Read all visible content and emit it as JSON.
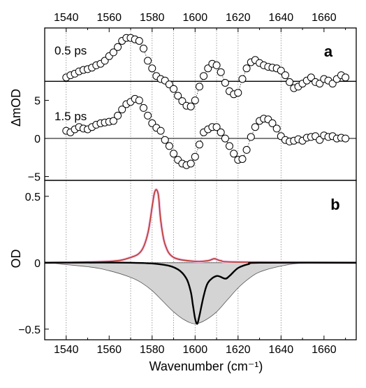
{
  "chart_data": [
    {
      "panel_label": "a",
      "type": "scatter",
      "ylabel": "ΔmOD",
      "xlim": [
        1530,
        1675
      ],
      "ylim": [
        -5.5,
        14.5
      ],
      "x_ticks": [
        1540,
        1560,
        1580,
        1600,
        1620,
        1640,
        1660
      ],
      "y_ticks": [
        -5,
        0,
        5
      ],
      "grid_x": [
        1540,
        1570,
        1580,
        1590,
        1600,
        1610,
        1620,
        1640
      ],
      "baseline_offsets": [
        7.5,
        0
      ],
      "series": [
        {
          "name": "0.5 ps",
          "offset": 7.5,
          "x": [
            1540,
            1542,
            1544,
            1546,
            1548,
            1550,
            1552,
            1554,
            1556,
            1558,
            1560,
            1562,
            1564,
            1566,
            1568,
            1570,
            1572,
            1574,
            1576,
            1578,
            1580,
            1582,
            1584,
            1586,
            1588,
            1590,
            1592,
            1594,
            1596,
            1598,
            1600,
            1602,
            1604,
            1606,
            1608,
            1610,
            1612,
            1614,
            1616,
            1618,
            1620,
            1622,
            1624,
            1626,
            1628,
            1630,
            1632,
            1634,
            1636,
            1638,
            1640,
            1642,
            1644,
            1646,
            1648,
            1650,
            1652,
            1654,
            1656,
            1658,
            1660,
            1662,
            1664,
            1666,
            1668,
            1670
          ],
          "y": [
            8.0,
            8.3,
            8.5,
            8.8,
            9.0,
            9.1,
            9.3,
            9.6,
            9.8,
            10.2,
            10.8,
            11.3,
            12.0,
            12.8,
            13.2,
            13.2,
            13.0,
            12.8,
            11.8,
            10.2,
            9.2,
            8.2,
            7.8,
            7.6,
            7.1,
            6.5,
            5.6,
            4.9,
            4.3,
            4.2,
            5.0,
            6.8,
            8.2,
            9.2,
            9.8,
            9.6,
            8.7,
            7.3,
            6.2,
            5.8,
            6.0,
            7.8,
            9.2,
            10.0,
            10.3,
            9.9,
            9.6,
            9.4,
            9.3,
            9.2,
            8.9,
            8.3,
            7.4,
            6.6,
            6.8,
            7.2,
            7.6,
            8.0,
            7.4,
            7.2,
            7.8,
            7.6,
            7.2,
            7.8,
            8.3,
            8.0
          ]
        },
        {
          "name": "1.5 ps",
          "offset": 0,
          "x": [
            1540,
            1542,
            1544,
            1546,
            1548,
            1550,
            1552,
            1554,
            1556,
            1558,
            1560,
            1562,
            1564,
            1566,
            1568,
            1570,
            1572,
            1574,
            1576,
            1578,
            1580,
            1582,
            1584,
            1586,
            1588,
            1590,
            1592,
            1594,
            1596,
            1598,
            1600,
            1602,
            1604,
            1606,
            1608,
            1610,
            1612,
            1614,
            1616,
            1618,
            1620,
            1622,
            1624,
            1626,
            1628,
            1630,
            1632,
            1634,
            1636,
            1638,
            1640,
            1642,
            1644,
            1646,
            1648,
            1650,
            1652,
            1654,
            1656,
            1658,
            1660,
            1662,
            1664,
            1666,
            1668,
            1670
          ],
          "y": [
            1.0,
            0.8,
            1.2,
            1.5,
            1.3,
            1.2,
            1.5,
            1.8,
            2.0,
            2.1,
            2.2,
            2.3,
            3.0,
            3.8,
            4.5,
            4.8,
            5.2,
            5.0,
            4.0,
            3.0,
            2.0,
            1.4,
            1.0,
            -0.2,
            -1.0,
            -2.0,
            -2.8,
            -3.3,
            -3.5,
            -3.3,
            -2.4,
            -0.8,
            0.8,
            1.2,
            1.5,
            1.5,
            0.8,
            0.0,
            -1.0,
            -2.0,
            -2.8,
            -2.7,
            -1.5,
            0.2,
            1.5,
            2.3,
            2.6,
            2.5,
            2.0,
            1.3,
            0.3,
            -0.2,
            -0.4,
            -0.3,
            -0.1,
            -0.3,
            0.1,
            0.2,
            0.3,
            -0.2,
            0.4,
            0.2,
            0.3,
            0.0,
            0.1,
            0.0
          ]
        }
      ]
    },
    {
      "panel_label": "b",
      "type": "line",
      "xlabel": "Wavenumber (cm⁻¹)",
      "ylabel": "OD",
      "xlim": [
        1530,
        1675
      ],
      "ylim": [
        -0.58,
        0.62
      ],
      "x_ticks": [
        1540,
        1560,
        1580,
        1600,
        1620,
        1640,
        1660
      ],
      "y_ticks": [
        -0.5,
        0,
        0.5
      ],
      "grid_x": [
        1540,
        1570,
        1580,
        1590,
        1600,
        1610,
        1620,
        1640
      ],
      "series": [
        {
          "style": "red line",
          "x": [
            1530,
            1560,
            1570,
            1575,
            1578,
            1580,
            1581,
            1582,
            1583,
            1584,
            1586,
            1590,
            1600,
            1606,
            1609,
            1612,
            1620,
            1675
          ],
          "y": [
            0.0,
            0.01,
            0.04,
            0.09,
            0.22,
            0.42,
            0.52,
            0.55,
            0.5,
            0.32,
            0.14,
            0.04,
            0.01,
            0.015,
            0.03,
            0.015,
            0.005,
            0.0
          ]
        },
        {
          "style": "black line",
          "x": [
            1530,
            1570,
            1585,
            1592,
            1596,
            1598,
            1599,
            1600,
            1601,
            1602,
            1604,
            1606,
            1610,
            1614,
            1616,
            1620,
            1625,
            1630,
            1675
          ],
          "y": [
            0.0,
            0.0,
            -0.015,
            -0.05,
            -0.12,
            -0.22,
            -0.32,
            -0.42,
            -0.46,
            -0.4,
            -0.25,
            -0.15,
            -0.1,
            -0.12,
            -0.1,
            -0.04,
            -0.01,
            0.0,
            0.0
          ]
        },
        {
          "style": "grey filled area",
          "x": [
            1530,
            1550,
            1560,
            1570,
            1575,
            1580,
            1585,
            1590,
            1595,
            1600,
            1605,
            1610,
            1615,
            1620,
            1625,
            1630,
            1640,
            1650,
            1675
          ],
          "y": [
            0.0,
            -0.03,
            -0.06,
            -0.11,
            -0.15,
            -0.21,
            -0.29,
            -0.37,
            -0.43,
            -0.46,
            -0.43,
            -0.37,
            -0.28,
            -0.19,
            -0.12,
            -0.07,
            -0.025,
            -0.005,
            0.0
          ]
        }
      ]
    }
  ]
}
